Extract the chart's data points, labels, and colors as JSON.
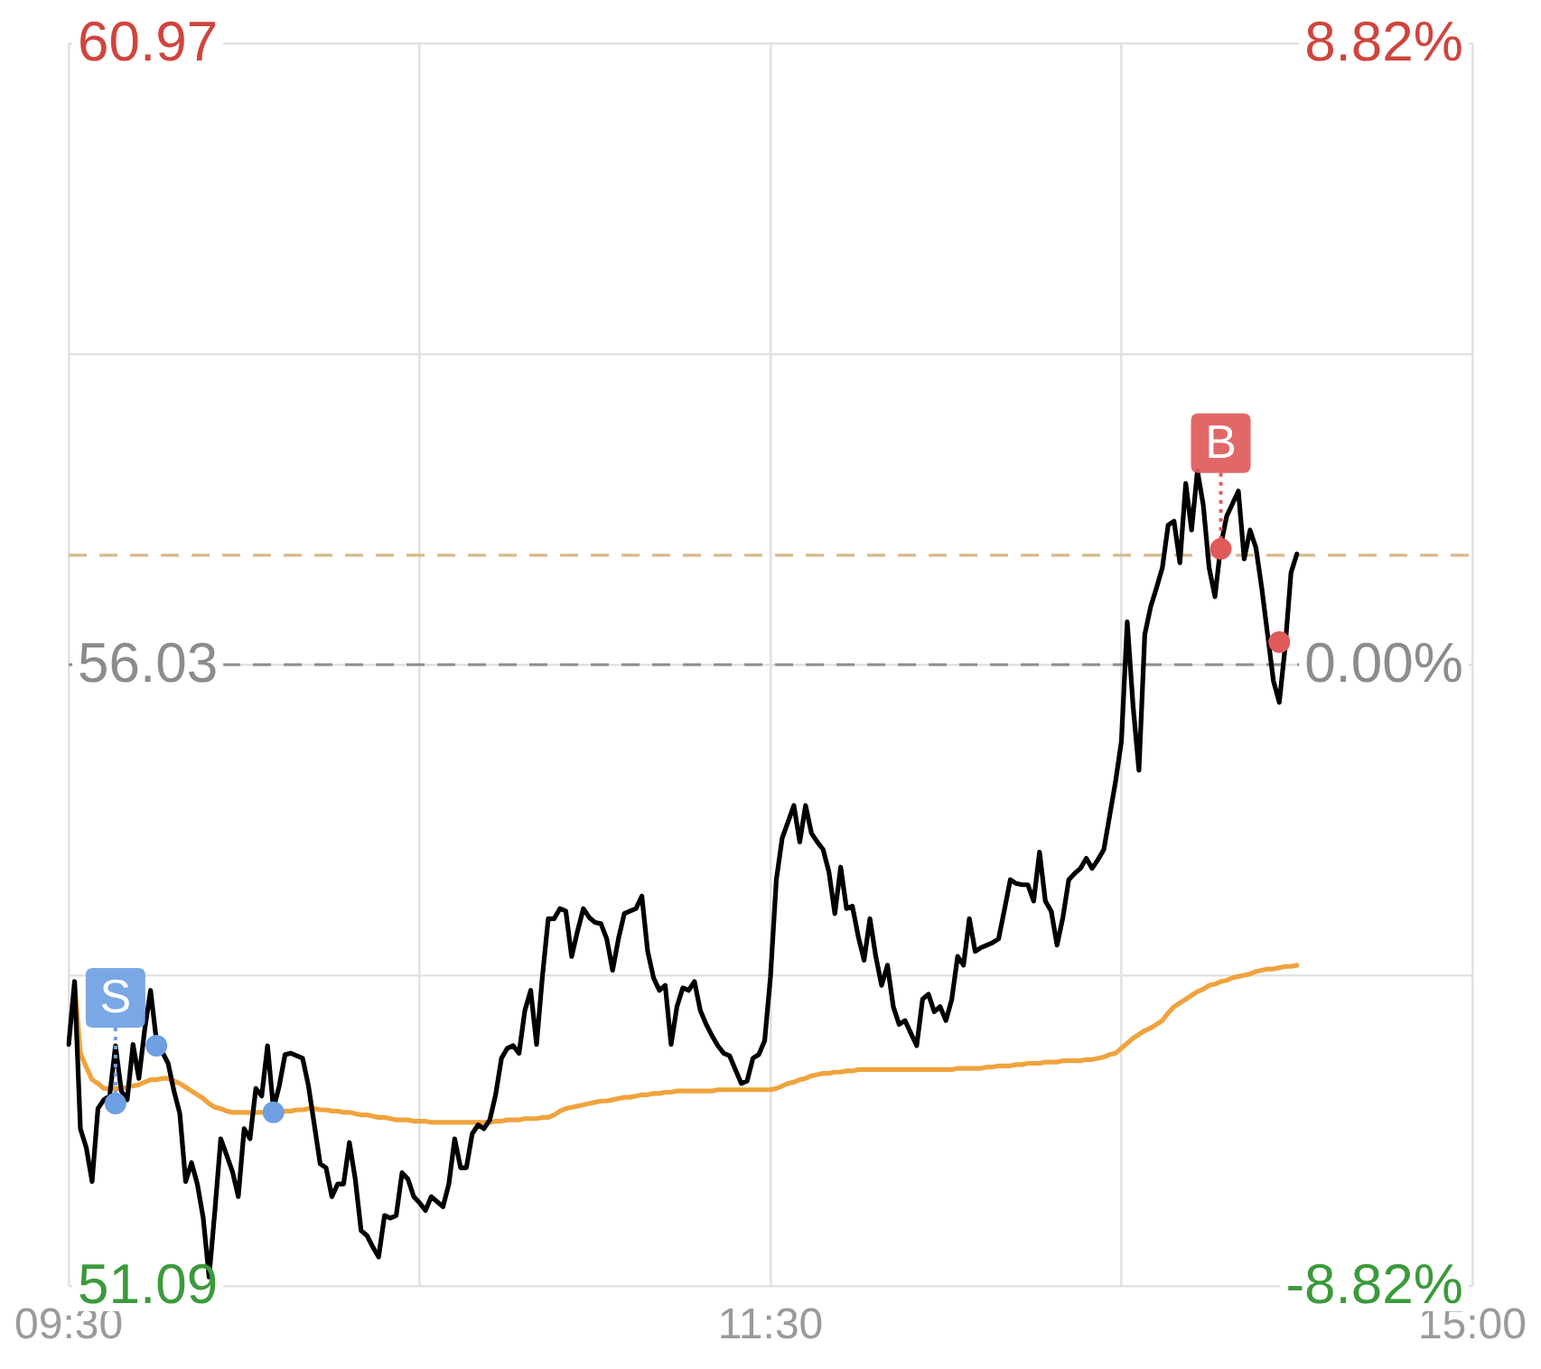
{
  "chart_data": {
    "type": "line",
    "categories": [
      "09:30",
      null,
      null,
      null,
      null,
      null,
      null,
      null,
      null,
      null,
      null,
      null,
      null,
      null,
      null,
      null,
      null,
      null,
      null,
      null,
      null,
      null,
      null,
      null,
      null,
      null,
      null,
      null,
      null,
      null,
      null,
      null,
      null,
      null,
      null,
      null,
      null,
      null,
      null,
      null,
      null,
      null,
      null,
      null,
      null,
      null,
      null,
      null,
      null,
      null,
      null,
      null,
      null,
      null,
      null,
      null,
      null,
      null,
      null,
      null,
      null,
      null,
      null,
      null,
      null,
      null,
      null,
      null,
      null,
      null,
      null,
      null,
      null,
      null,
      null,
      null,
      null,
      null,
      null,
      null,
      null,
      null,
      null,
      null,
      null,
      null,
      null,
      null,
      null,
      null,
      null,
      null,
      null,
      null,
      null,
      null,
      null,
      null,
      null,
      null,
      null,
      null,
      null,
      null,
      null,
      null,
      null,
      null,
      null,
      null,
      null,
      null,
      null,
      null,
      null,
      null,
      null,
      null,
      null,
      null,
      "11:30",
      null,
      null,
      null,
      null,
      null,
      null,
      null,
      null,
      null,
      null,
      null,
      null,
      null,
      null,
      null,
      null,
      null,
      null,
      null,
      null,
      null,
      null,
      null,
      null,
      null,
      null,
      null,
      null,
      null,
      null,
      null,
      null,
      null,
      null,
      null,
      null,
      null,
      null,
      null,
      null,
      null,
      null,
      null,
      null,
      null,
      null,
      null,
      null,
      null,
      null,
      null,
      null,
      null,
      null,
      null,
      null,
      null,
      null,
      null,
      null,
      null,
      null,
      null,
      null,
      null,
      null,
      null,
      null,
      null,
      null,
      null,
      null,
      null,
      null,
      null,
      null,
      null,
      null,
      null,
      null,
      null,
      null,
      null,
      null,
      null,
      null,
      null,
      null,
      null,
      null,
      null,
      null,
      null,
      null,
      null,
      null,
      null,
      null,
      null,
      null,
      null,
      null,
      null,
      null,
      null,
      null,
      null,
      null,
      null,
      null,
      null,
      null,
      null,
      null,
      null,
      null,
      null,
      null,
      null,
      "15:00"
    ],
    "ylim": [
      51.09,
      60.97
    ],
    "yticks": [
      51.09,
      {
        "value": 53.56,
        "label": null
      },
      56.03,
      {
        "value": 58.5,
        "label": null
      },
      60.97
    ],
    "y2lim": [
      -8.82,
      8.82
    ],
    "y2ticks": [
      {
        "value": -8.82,
        "label": "-8.82%"
      },
      {
        "value": 0,
        "label": "0.00%"
      },
      {
        "value": 8.82,
        "label": "8.82%"
      }
    ],
    "grid": true,
    "series": [
      {
        "color": "#000000",
        "marker": "none",
        "values": [
          53.01,
          53.51,
          52.34,
          52.19,
          51.92,
          52.5,
          52.57,
          52.6,
          53.0,
          52.64,
          52.57,
          53.01,
          52.74,
          53.13,
          53.44,
          53.04,
          52.95,
          52.86,
          52.64,
          52.46,
          51.92,
          52.07,
          51.9,
          51.63,
          51.16,
          51.69,
          52.26,
          52.13,
          52.0,
          51.8,
          52.34,
          52.26,
          52.66,
          52.6,
          53.0,
          52.5,
          52.68,
          52.93,
          52.94,
          52.92,
          52.9,
          52.68,
          52.37,
          52.06,
          52.03,
          51.8,
          51.9,
          51.9,
          52.23,
          51.94,
          51.53,
          51.49,
          51.4,
          51.32,
          51.65,
          51.63,
          51.65,
          51.99,
          51.94,
          51.8,
          51.75,
          51.69,
          51.8,
          51.76,
          51.72,
          51.9,
          52.26,
          52.03,
          52.03,
          52.3,
          52.37,
          52.34,
          52.41,
          52.61,
          52.9,
          52.98,
          53.0,
          52.94,
          53.28,
          53.44,
          53.01,
          53.55,
          54.01,
          54.01,
          54.09,
          54.07,
          53.71,
          53.91,
          54.09,
          54.02,
          53.98,
          53.97,
          53.85,
          53.6,
          53.85,
          54.05,
          54.07,
          54.09,
          54.19,
          53.75,
          53.54,
          53.44,
          53.48,
          53.01,
          53.31,
          53.46,
          53.44,
          53.51,
          53.28,
          53.17,
          53.08,
          53.0,
          52.94,
          52.92,
          52.81,
          52.7,
          52.72,
          52.9,
          52.93,
          53.04,
          53.55,
          54.32,
          54.65,
          54.78,
          54.91,
          54.62,
          54.91,
          54.69,
          54.62,
          54.56,
          54.38,
          54.05,
          54.42,
          54.09,
          54.11,
          53.87,
          53.68,
          54.01,
          53.71,
          53.48,
          53.64,
          53.31,
          53.17,
          53.2,
          53.1,
          53.0,
          53.37,
          53.41,
          53.27,
          53.31,
          53.2,
          53.37,
          53.71,
          53.64,
          54.01,
          53.75,
          53.78,
          53.8,
          53.82,
          53.85,
          54.08,
          54.32,
          54.29,
          54.28,
          54.28,
          54.15,
          54.54,
          54.15,
          54.07,
          53.8,
          54.02,
          54.32,
          54.37,
          54.41,
          54.49,
          54.41,
          54.48,
          54.56,
          54.83,
          55.1,
          55.42,
          56.37,
          55.7,
          55.19,
          56.27,
          56.49,
          56.64,
          56.8,
          57.14,
          57.17,
          56.84,
          57.47,
          57.1,
          57.57,
          57.3,
          56.8,
          56.57,
          56.98,
          57.21,
          57.31,
          57.41,
          56.87,
          57.1,
          56.96,
          56.64,
          56.27,
          55.9,
          55.73,
          56.17,
          56.76,
          56.91,
          null,
          null,
          null,
          null,
          null,
          null,
          null,
          null,
          null,
          null,
          null,
          null,
          null,
          null,
          null,
          null,
          null,
          null,
          null,
          null,
          null,
          null,
          null,
          null,
          null,
          null,
          null,
          null,
          null,
          null
        ]
      },
      {
        "color": "#f0a33c",
        "marker": "none",
        "values": [
          null,
          53.51,
          52.94,
          52.83,
          52.73,
          52.7,
          52.66,
          52.66,
          52.66,
          52.66,
          52.67,
          52.68,
          52.69,
          52.71,
          52.73,
          52.73,
          52.74,
          52.74,
          52.72,
          52.7,
          52.67,
          52.64,
          52.61,
          52.58,
          52.54,
          52.51,
          52.5,
          52.48,
          52.47,
          52.47,
          52.47,
          52.47,
          52.47,
          52.47,
          52.47,
          52.47,
          52.47,
          52.48,
          52.48,
          52.49,
          52.49,
          52.5,
          52.5,
          52.49,
          52.49,
          52.48,
          52.48,
          52.47,
          52.47,
          52.46,
          52.45,
          52.45,
          52.44,
          52.43,
          52.43,
          52.42,
          52.41,
          52.41,
          52.41,
          52.4,
          52.4,
          52.4,
          52.39,
          52.39,
          52.39,
          52.39,
          52.39,
          52.39,
          52.39,
          52.39,
          52.39,
          52.39,
          52.39,
          52.4,
          52.4,
          52.41,
          52.41,
          52.41,
          52.42,
          52.42,
          52.42,
          52.43,
          52.43,
          52.45,
          52.48,
          52.5,
          52.51,
          52.52,
          52.53,
          52.54,
          52.55,
          52.56,
          52.56,
          52.57,
          52.58,
          52.59,
          52.59,
          52.6,
          52.61,
          52.61,
          52.62,
          52.62,
          52.63,
          52.63,
          52.64,
          52.64,
          52.64,
          52.64,
          52.64,
          52.64,
          52.64,
          52.65,
          52.65,
          52.65,
          52.65,
          52.65,
          52.65,
          52.65,
          52.65,
          52.65,
          52.65,
          52.66,
          52.68,
          52.7,
          52.71,
          52.73,
          52.74,
          52.76,
          52.77,
          52.78,
          52.78,
          52.79,
          52.79,
          52.8,
          52.8,
          52.81,
          52.81,
          52.81,
          52.81,
          52.81,
          52.81,
          52.81,
          52.81,
          52.81,
          52.81,
          52.81,
          52.81,
          52.81,
          52.81,
          52.81,
          52.81,
          52.81,
          52.82,
          52.82,
          52.82,
          52.82,
          52.82,
          52.83,
          52.83,
          52.84,
          52.84,
          52.84,
          52.85,
          52.85,
          52.86,
          52.86,
          52.86,
          52.87,
          52.87,
          52.87,
          52.88,
          52.88,
          52.88,
          52.88,
          52.89,
          52.89,
          52.9,
          52.91,
          52.93,
          52.94,
          52.98,
          53.02,
          53.06,
          53.09,
          53.12,
          53.14,
          53.17,
          53.2,
          53.26,
          53.31,
          53.34,
          53.37,
          53.4,
          53.43,
          53.45,
          53.48,
          53.49,
          53.51,
          53.52,
          53.54,
          53.55,
          53.56,
          53.57,
          53.59,
          53.6,
          53.61,
          53.61,
          53.62,
          53.63,
          53.63,
          53.64,
          null,
          null,
          null,
          null,
          null,
          null,
          null,
          null,
          null,
          null,
          null,
          null,
          null,
          null,
          null,
          null,
          null,
          null,
          null,
          null,
          null,
          null,
          null,
          null,
          null,
          null,
          null,
          null,
          null,
          null
        ]
      },
      {
        "type": "scatter",
        "color": "#6f9fe3",
        "marker": "circle",
        "values": [
          null,
          null,
          null,
          null,
          null,
          null,
          null,
          null,
          52.54,
          null,
          null,
          null,
          null,
          null,
          null,
          53.0,
          null,
          null,
          null,
          null,
          null,
          null,
          null,
          null,
          null,
          null,
          null,
          null,
          null,
          null,
          null,
          null,
          null,
          null,
          null,
          52.47,
          null,
          null,
          null,
          null,
          null,
          null,
          null,
          null,
          null,
          null,
          null,
          null,
          null,
          null,
          null,
          null,
          null,
          null,
          null,
          null,
          null,
          null,
          null,
          null,
          null,
          null,
          null,
          null,
          null,
          null,
          null,
          null,
          null,
          null,
          null,
          null,
          null,
          null,
          null,
          null,
          null,
          null,
          null,
          null,
          null,
          null,
          null,
          null,
          null,
          null,
          null,
          null,
          null,
          null,
          null,
          null,
          null,
          null,
          null,
          null,
          null,
          null,
          null,
          null,
          null,
          null,
          null,
          null,
          null,
          null,
          null,
          null,
          null,
          null,
          null,
          null,
          null,
          null,
          null,
          null,
          null,
          null,
          null,
          null,
          null,
          null,
          null,
          null,
          null,
          null,
          null,
          null,
          null,
          null,
          null,
          null,
          null,
          null,
          null,
          null,
          null,
          null,
          null,
          null,
          null,
          null,
          null,
          null,
          null,
          null,
          null,
          null,
          null,
          null,
          null,
          null,
          null,
          null,
          null,
          null,
          null,
          null,
          null,
          null,
          null,
          null,
          null,
          null,
          null,
          null,
          null,
          null,
          null,
          null,
          null,
          null,
          null,
          null,
          null,
          null,
          null,
          null,
          null,
          null,
          null,
          null,
          null,
          null,
          null,
          null,
          null,
          null,
          null,
          null,
          null,
          null,
          null,
          null,
          null,
          null,
          null,
          null,
          null,
          null,
          null,
          null,
          null,
          null,
          null,
          null,
          null,
          null,
          null,
          null,
          null,
          null,
          null,
          null,
          null,
          null,
          null,
          null,
          null,
          null,
          null,
          null,
          null,
          null,
          null,
          null,
          null,
          null,
          null,
          null,
          null,
          null,
          null,
          null,
          null,
          null,
          null,
          null,
          null,
          null,
          null
        ]
      },
      {
        "type": "scatter",
        "color": "#e05a5a",
        "marker": "circle",
        "values": [
          null,
          null,
          null,
          null,
          null,
          null,
          null,
          null,
          null,
          null,
          null,
          null,
          null,
          null,
          null,
          null,
          null,
          null,
          null,
          null,
          null,
          null,
          null,
          null,
          null,
          null,
          null,
          null,
          null,
          null,
          null,
          null,
          null,
          null,
          null,
          null,
          null,
          null,
          null,
          null,
          null,
          null,
          null,
          null,
          null,
          null,
          null,
          null,
          null,
          null,
          null,
          null,
          null,
          null,
          null,
          null,
          null,
          null,
          null,
          null,
          null,
          null,
          null,
          null,
          null,
          null,
          null,
          null,
          null,
          null,
          null,
          null,
          null,
          null,
          null,
          null,
          null,
          null,
          null,
          null,
          null,
          null,
          null,
          null,
          null,
          null,
          null,
          null,
          null,
          null,
          null,
          null,
          null,
          null,
          null,
          null,
          null,
          null,
          null,
          null,
          null,
          null,
          null,
          null,
          null,
          null,
          null,
          null,
          null,
          null,
          null,
          null,
          null,
          null,
          null,
          null,
          null,
          null,
          null,
          null,
          null,
          null,
          null,
          null,
          null,
          null,
          null,
          null,
          null,
          null,
          null,
          null,
          null,
          null,
          null,
          null,
          null,
          null,
          null,
          null,
          null,
          null,
          null,
          null,
          null,
          null,
          null,
          null,
          null,
          null,
          null,
          null,
          null,
          null,
          null,
          null,
          null,
          null,
          null,
          null,
          null,
          null,
          null,
          null,
          null,
          null,
          null,
          null,
          null,
          null,
          null,
          null,
          null,
          null,
          null,
          null,
          null,
          null,
          null,
          null,
          null,
          null,
          null,
          null,
          null,
          null,
          null,
          null,
          null,
          null,
          null,
          null,
          null,
          null,
          null,
          null,
          null,
          56.95,
          null,
          null,
          null,
          null,
          null,
          null,
          null,
          null,
          null,
          56.21,
          null,
          null,
          null,
          null,
          null,
          null,
          null,
          null,
          null,
          null,
          null,
          null,
          null,
          null,
          null,
          null,
          null,
          null,
          null,
          null,
          null,
          null,
          null,
          null,
          null,
          null,
          null,
          null,
          null,
          null,
          null,
          null,
          null
        ]
      }
    ],
    "ref_lines": [
      {
        "axis": "y",
        "value": 56.03,
        "color": "#8c8c8c",
        "line_style": "dashed"
      },
      {
        "axis": "y",
        "value": 56.9,
        "color": "#d8b98a",
        "line_style": "dashed"
      }
    ],
    "annotations": [
      {
        "text": "S",
        "y": 52.54
      },
      {
        "text": "B",
        "y": 56.95
      }
    ]
  }
}
